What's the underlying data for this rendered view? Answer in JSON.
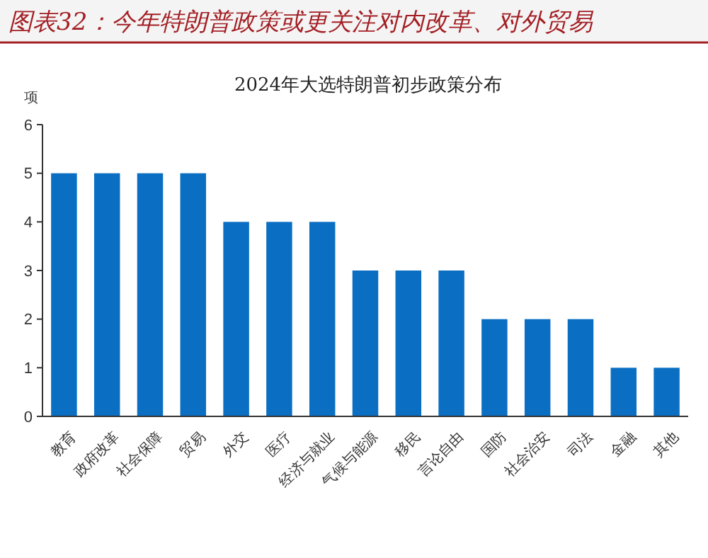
{
  "chart_data": {
    "type": "bar",
    "title": "图表32：今年特朗普政策或更关注对内改革、对外贸易",
    "subtitle": "2024年大选特朗普初步政策分布",
    "ylabel": "项",
    "categories": [
      "教育",
      "政府改革",
      "社会保障",
      "贸易",
      "外交",
      "医疗",
      "经济与就业",
      "气候与能源",
      "移民",
      "言论自由",
      "国防",
      "社会治安",
      "司法",
      "金融",
      "其他"
    ],
    "values": [
      5,
      5,
      5,
      5,
      4,
      4,
      4,
      3,
      3,
      3,
      2,
      2,
      2,
      1,
      1
    ],
    "color": "#0a6fc2",
    "ylim": [
      0,
      6
    ],
    "yticks": [
      0,
      1,
      2,
      3,
      4,
      5,
      6
    ],
    "grid": false
  }
}
